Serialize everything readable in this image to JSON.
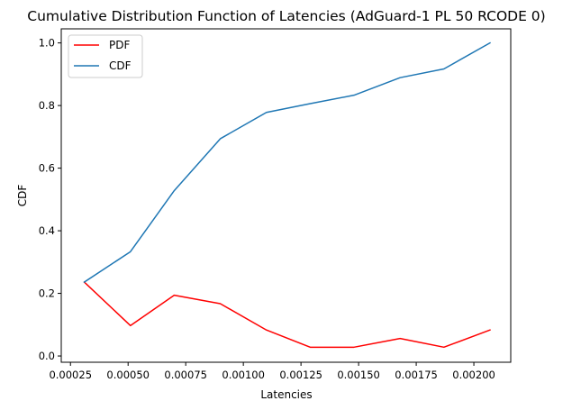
{
  "chart_data": {
    "type": "line",
    "title": "Cumulative Distribution Function of Latencies (AdGuard-1 PL 50 RCODE 0)",
    "xlabel": "Latencies",
    "ylabel": "CDF",
    "xlim": [
      0.00021,
      0.00216
    ],
    "ylim": [
      -0.02,
      1.045
    ],
    "xticks": [
      0.00025,
      0.0005,
      0.00075,
      0.001,
      0.00125,
      0.0015,
      0.00175,
      0.002
    ],
    "xtick_labels": [
      "0.00025",
      "0.00050",
      "0.00075",
      "0.00100",
      "0.00125",
      "0.00150",
      "0.00175",
      "0.00200"
    ],
    "yticks": [
      0.0,
      0.2,
      0.4,
      0.6,
      0.8,
      1.0
    ],
    "ytick_labels": [
      "0.0",
      "0.2",
      "0.4",
      "0.6",
      "0.8",
      "1.0"
    ],
    "grid": false,
    "legend_position": "top-left",
    "x": [
      0.00031,
      0.00051,
      0.0007,
      0.0009,
      0.0011,
      0.00129,
      0.00148,
      0.00168,
      0.00187,
      0.00207
    ],
    "series": [
      {
        "name": "PDF",
        "color": "#ff0000",
        "values": [
          0.236,
          0.097,
          0.194,
          0.167,
          0.083,
          0.028,
          0.028,
          0.056,
          0.028,
          0.083
        ]
      },
      {
        "name": "CDF",
        "color": "#1f77b4",
        "values": [
          0.236,
          0.333,
          0.528,
          0.694,
          0.778,
          0.806,
          0.833,
          0.889,
          0.917,
          1.0
        ]
      }
    ]
  }
}
